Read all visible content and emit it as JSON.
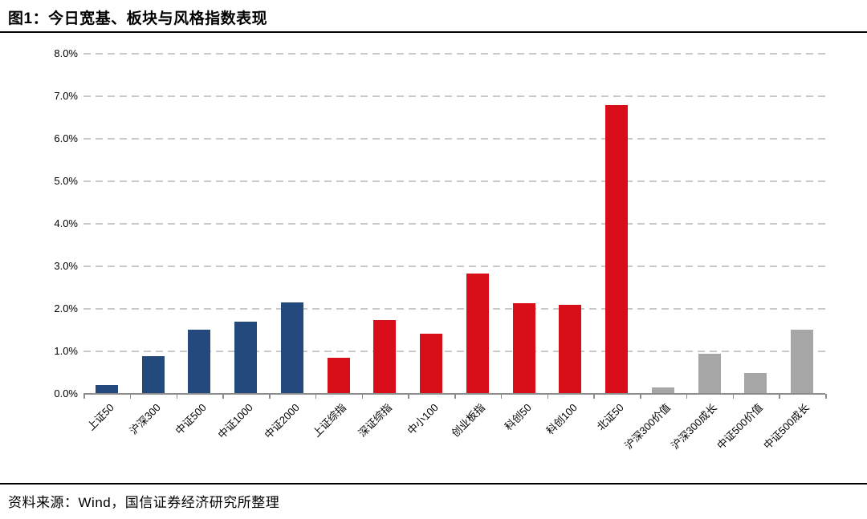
{
  "page": {
    "title": "图1：今日宽基、板块与风格指数表现",
    "source_note": "资料来源：Wind，国信证券经济研究所整理"
  },
  "chart_data": {
    "type": "bar",
    "title": "今日宽基、板块与风格指数表现",
    "categories": [
      "上证50",
      "沪深300",
      "中证500",
      "中证1000",
      "中证2000",
      "上证综指",
      "深证综指",
      "中小100",
      "创业板指",
      "科创50",
      "科创100",
      "北证50",
      "沪深300价值",
      "沪深300成长",
      "中证500价值",
      "中证500成长"
    ],
    "values": [
      0.21,
      0.88,
      1.51,
      1.7,
      2.15,
      0.84,
      1.74,
      1.42,
      2.83,
      2.13,
      2.09,
      6.79,
      0.15,
      0.94,
      0.49,
      1.51
    ],
    "unit": "%",
    "bar_colors": [
      "#24497D",
      "#24497D",
      "#24497D",
      "#24497D",
      "#24497D",
      "#D80E19",
      "#D80E19",
      "#D80E19",
      "#D80E19",
      "#D80E19",
      "#D80E19",
      "#D80E19",
      "#A6A6A6",
      "#A6A6A6",
      "#A6A6A6",
      "#A6A6A6"
    ],
    "ylim": [
      0,
      8
    ],
    "ytick_step": 1,
    "ytick_labels": [
      "0.0%",
      "1.0%",
      "2.0%",
      "3.0%",
      "4.0%",
      "5.0%",
      "6.0%",
      "7.0%",
      "8.0%"
    ],
    "xlabel": "",
    "ylabel": "",
    "grid": "horizontal-dashed",
    "legend_position": "none"
  }
}
